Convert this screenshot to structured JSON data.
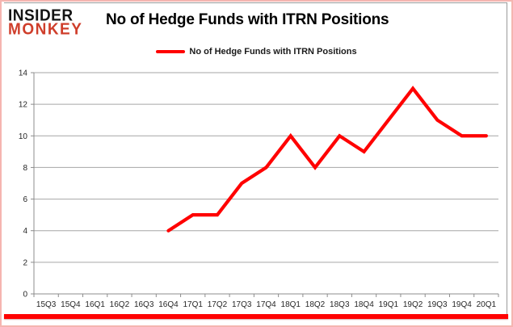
{
  "logo": {
    "line1": "INSIDER",
    "line2": "MONKEY"
  },
  "colors": {
    "accent_red": "#ff0000",
    "logo_black": "#141414",
    "logo_red": "#cf3e2b",
    "frame_pink": "#f5b5b0",
    "border_gray": "#9a9a9a",
    "grid": "#a6a6a6",
    "axis": "#8c8c8c",
    "text": "#262626"
  },
  "chart_data": {
    "type": "line",
    "title": "No of Hedge Funds with ITRN Positions",
    "categories": [
      "15Q3",
      "15Q4",
      "16Q1",
      "16Q2",
      "16Q3",
      "16Q4",
      "17Q1",
      "17Q2",
      "17Q3",
      "17Q4",
      "18Q1",
      "18Q2",
      "18Q3",
      "18Q4",
      "19Q1",
      "19Q2",
      "19Q3",
      "19Q4",
      "20Q1"
    ],
    "series": [
      {
        "name": "No of Hedge Funds with ITRN Positions",
        "color": "#ff0000",
        "values": [
          null,
          null,
          null,
          null,
          null,
          4,
          5,
          5,
          7,
          8,
          10,
          8,
          10,
          9,
          11,
          13,
          11,
          10,
          10
        ]
      }
    ],
    "ylim": [
      0,
      14
    ],
    "ytick_step": 2,
    "grid": true,
    "legend_position": "top"
  }
}
